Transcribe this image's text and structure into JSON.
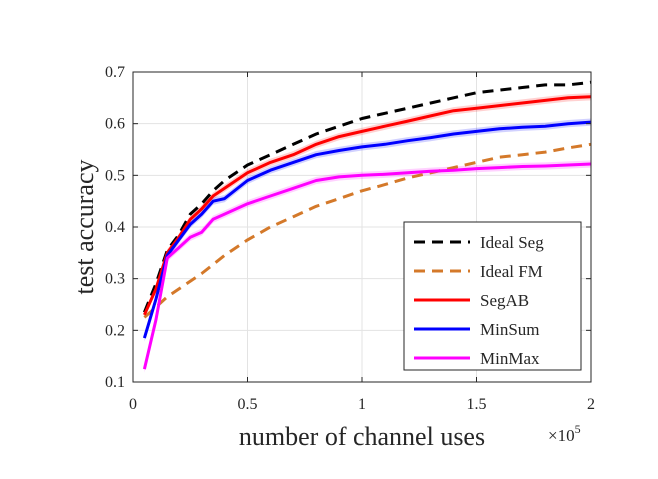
{
  "chart_data": {
    "type": "line",
    "title": "",
    "xlabel": "number of channel uses",
    "ylabel": "test accuracy",
    "x_multiplier": "×10",
    "x_multiplier_exp": "5",
    "xlim": [
      0,
      2
    ],
    "ylim": [
      0.1,
      0.7
    ],
    "xticks": [
      "0",
      "0.5",
      "1",
      "1.5",
      "2"
    ],
    "yticks": [
      "0.1",
      "0.2",
      "0.3",
      "0.4",
      "0.5",
      "0.6",
      "0.7"
    ],
    "grid": true,
    "legend_position": "bottom-right",
    "series": [
      {
        "name": "Ideal Seg",
        "color": "#000000",
        "style": "dashed",
        "x": [
          0.05,
          0.1,
          0.15,
          0.2,
          0.25,
          0.3,
          0.35,
          0.4,
          0.5,
          0.6,
          0.7,
          0.8,
          0.9,
          1.0,
          1.1,
          1.2,
          1.3,
          1.4,
          1.5,
          1.6,
          1.7,
          1.8,
          1.9,
          2.0
        ],
        "y": [
          0.235,
          0.29,
          0.355,
          0.385,
          0.425,
          0.445,
          0.47,
          0.49,
          0.52,
          0.54,
          0.56,
          0.58,
          0.595,
          0.61,
          0.62,
          0.63,
          0.64,
          0.65,
          0.66,
          0.665,
          0.67,
          0.675,
          0.675,
          0.68
        ]
      },
      {
        "name": "Ideal FM",
        "color": "#d4792a",
        "style": "dashed",
        "x": [
          0.05,
          0.1,
          0.15,
          0.2,
          0.3,
          0.4,
          0.5,
          0.6,
          0.7,
          0.8,
          0.9,
          1.0,
          1.1,
          1.2,
          1.3,
          1.4,
          1.5,
          1.6,
          1.7,
          1.8,
          1.9,
          2.0
        ],
        "y": [
          0.225,
          0.245,
          0.265,
          0.28,
          0.31,
          0.345,
          0.375,
          0.4,
          0.42,
          0.44,
          0.455,
          0.47,
          0.482,
          0.495,
          0.505,
          0.515,
          0.525,
          0.535,
          0.54,
          0.545,
          0.553,
          0.56
        ]
      },
      {
        "name": "SegAB",
        "color": "#ff0000",
        "style": "solid",
        "x": [
          0.05,
          0.1,
          0.15,
          0.2,
          0.25,
          0.3,
          0.35,
          0.4,
          0.5,
          0.6,
          0.7,
          0.8,
          0.9,
          1.0,
          1.1,
          1.2,
          1.3,
          1.4,
          1.5,
          1.6,
          1.7,
          1.8,
          1.9,
          2.0
        ],
        "y": [
          0.23,
          0.28,
          0.35,
          0.38,
          0.415,
          0.435,
          0.46,
          0.475,
          0.505,
          0.525,
          0.54,
          0.56,
          0.575,
          0.585,
          0.595,
          0.605,
          0.615,
          0.625,
          0.63,
          0.635,
          0.64,
          0.645,
          0.65,
          0.652
        ]
      },
      {
        "name": "MinSum",
        "color": "#0000ff",
        "style": "solid",
        "x": [
          0.05,
          0.1,
          0.15,
          0.2,
          0.25,
          0.3,
          0.35,
          0.4,
          0.5,
          0.6,
          0.7,
          0.8,
          0.9,
          1.0,
          1.1,
          1.2,
          1.3,
          1.4,
          1.5,
          1.6,
          1.7,
          1.8,
          1.9,
          2.0
        ],
        "y": [
          0.185,
          0.26,
          0.345,
          0.375,
          0.405,
          0.425,
          0.45,
          0.455,
          0.49,
          0.51,
          0.525,
          0.54,
          0.548,
          0.555,
          0.56,
          0.567,
          0.573,
          0.58,
          0.585,
          0.59,
          0.593,
          0.595,
          0.6,
          0.603
        ]
      },
      {
        "name": "MinMax",
        "color": "#ff00ff",
        "style": "solid",
        "x": [
          0.05,
          0.1,
          0.15,
          0.2,
          0.25,
          0.3,
          0.35,
          0.4,
          0.5,
          0.6,
          0.7,
          0.8,
          0.9,
          1.0,
          1.1,
          1.2,
          1.3,
          1.4,
          1.5,
          1.6,
          1.7,
          1.8,
          1.9,
          2.0
        ],
        "y": [
          0.125,
          0.22,
          0.34,
          0.36,
          0.38,
          0.39,
          0.415,
          0.425,
          0.445,
          0.46,
          0.475,
          0.49,
          0.497,
          0.5,
          0.502,
          0.505,
          0.508,
          0.51,
          0.513,
          0.515,
          0.517,
          0.518,
          0.52,
          0.522
        ]
      }
    ]
  }
}
